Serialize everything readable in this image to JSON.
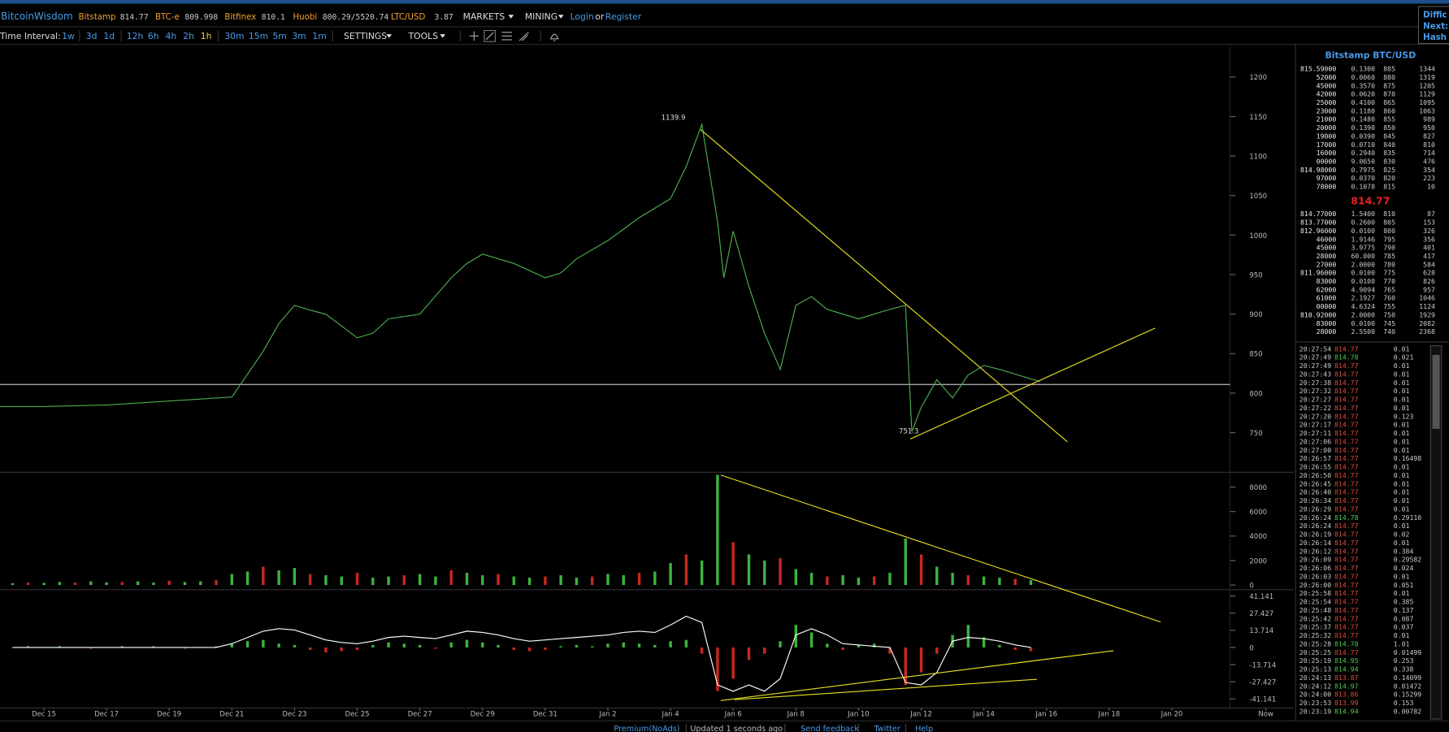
{
  "header": {
    "brand": "BitcoinWisdom",
    "tickers": [
      {
        "name": "Bitstamp",
        "price": "814.77"
      },
      {
        "name": "BTC-e",
        "price": "809.998"
      },
      {
        "name": "Bitfinex",
        "price": "810.1"
      },
      {
        "name": "Huobi",
        "price": "800.29/5520.74"
      },
      {
        "name": "LTC/USD",
        "price": "3.87"
      }
    ],
    "menus": [
      "MARKETS",
      "MINING"
    ],
    "login": "Login",
    "or": "or",
    "register": "Register"
  },
  "side_info": [
    "Diffic",
    "Next:",
    "Hash I"
  ],
  "toolbar": {
    "label": "Time Interval:",
    "intervals": [
      "1w",
      "3d",
      "1d",
      "12h",
      "6h",
      "4h",
      "2h",
      "1h",
      "30m",
      "15m",
      "5m",
      "3m",
      "1m"
    ],
    "settings": "SETTINGS",
    "tools": "TOOLS"
  },
  "chart_data": [
    {
      "type": "line",
      "xlim": [
        -1.4,
        39.3
      ],
      "ylim": [
        701,
        1239
      ],
      "yticks": [
        750,
        800,
        850,
        900,
        950,
        1000,
        1050,
        1100,
        1150,
        1200
      ],
      "x": [
        -1.4,
        0,
        2,
        4,
        6,
        7,
        7.5,
        8,
        8.5,
        9,
        10,
        10.5,
        11,
        12,
        13,
        13.5,
        14,
        15,
        16,
        16.5,
        17,
        18,
        19,
        20,
        20.5,
        21,
        21.5,
        21.7,
        22,
        22.5,
        23,
        23.5,
        24,
        24.5,
        25,
        26,
        27,
        27.5,
        27.7,
        28,
        28.5,
        29,
        29.5,
        30,
        30.5,
        31,
        31.5,
        31.8
      ],
      "series": [
        {
          "color": "#4caf50",
          "values": [
            783,
            783,
            785,
            790,
            795,
            853,
            888,
            911,
            905,
            900,
            870,
            876,
            894,
            900,
            946,
            964,
            976,
            964,
            946,
            952,
            970,
            993,
            1022,
            1046,
            1087,
            1139.9,
            1017,
            946,
            1005,
            935,
            876,
            830,
            911,
            922,
            906,
            894,
            906,
            911,
            751.3,
            782,
            817,
            794,
            823,
            835,
            830,
            824,
            818,
            814.77
          ]
        }
      ],
      "annotations": [
        {
          "x": 21,
          "value": 1139.9
        },
        {
          "x": 27.7,
          "value": 751.3
        }
      ]
    },
    {
      "type": "bar",
      "xlim": [
        -1.4,
        39.3
      ],
      "ylim": [
        -377,
        9132
      ],
      "yticks": [
        0,
        2000,
        4000,
        6000,
        8000
      ],
      "up_color": "#3cb43c",
      "down_color": "#c8281e",
      "x": [
        -1,
        -0.5,
        0,
        0.5,
        1,
        1.5,
        2,
        2.5,
        3,
        3.5,
        4,
        4.5,
        5,
        5.5,
        6,
        6.5,
        7,
        7.5,
        8,
        8.5,
        9,
        9.5,
        10,
        10.5,
        11,
        11.5,
        12,
        12.5,
        13,
        13.5,
        14,
        14.5,
        15,
        15.5,
        16,
        16.5,
        17,
        17.5,
        18,
        18.5,
        19,
        19.5,
        20,
        20.5,
        21,
        21.5,
        22,
        22.5,
        23,
        23.5,
        24,
        24.5,
        25,
        25.5,
        26,
        26.5,
        27,
        27.5,
        28,
        28.5,
        29,
        29.5,
        30,
        30.5,
        31,
        31.5
      ],
      "values": [
        150,
        200,
        180,
        250,
        200,
        300,
        220,
        250,
        300,
        200,
        350,
        250,
        300,
        400,
        900,
        1100,
        1500,
        1200,
        1400,
        900,
        800,
        700,
        1000,
        600,
        700,
        800,
        900,
        700,
        1200,
        1000,
        800,
        900,
        700,
        600,
        700,
        800,
        600,
        700,
        900,
        800,
        1000,
        1100,
        1800,
        2500,
        2000,
        9000,
        3500,
        2500,
        2000,
        2200,
        1300,
        1000,
        700,
        800,
        600,
        700,
        1000,
        3800,
        2500,
        1500,
        1000,
        800,
        700,
        600,
        500,
        400
      ]
    },
    {
      "type": "macd",
      "xlim": [
        -1.4,
        39.3
      ],
      "ylim": [
        -48.4,
        46.2
      ],
      "yticks": [
        -41.141,
        -27.427,
        -13.714,
        0,
        13.714,
        27.427,
        41.141
      ],
      "xticks": [
        {
          "value": 0,
          "label": "Dec 15"
        },
        {
          "value": 2,
          "label": "Dec 17"
        },
        {
          "value": 4,
          "label": "Dec 19"
        },
        {
          "value": 6,
          "label": "Dec 21"
        },
        {
          "value": 8,
          "label": "Dec 23"
        },
        {
          "value": 10,
          "label": "Dec 25"
        },
        {
          "value": 12,
          "label": "Dec 27"
        },
        {
          "value": 14,
          "label": "Dec 29"
        },
        {
          "value": 16,
          "label": "Dec 31"
        },
        {
          "value": 18,
          "label": "Jan 2"
        },
        {
          "value": 20,
          "label": "Jan 4"
        },
        {
          "value": 22,
          "label": "Jan 6"
        },
        {
          "value": 24,
          "label": "Jan 8"
        },
        {
          "value": 26,
          "label": "Jan 10"
        },
        {
          "value": 28,
          "label": "Jan 12"
        },
        {
          "value": 30,
          "label": "Jan 14"
        },
        {
          "value": 32,
          "label": "Jan 16"
        },
        {
          "value": 34,
          "label": "Jan 18"
        },
        {
          "value": 36,
          "label": "Jan 20"
        },
        {
          "value": 39,
          "label": "Now"
        }
      ],
      "x": [
        -1,
        -0.5,
        0,
        0.5,
        1,
        1.5,
        2,
        2.5,
        3,
        3.5,
        4,
        4.5,
        5,
        5.5,
        6,
        6.5,
        7,
        7.5,
        8,
        8.5,
        9,
        9.5,
        10,
        10.5,
        11,
        11.5,
        12,
        12.5,
        13,
        13.5,
        14,
        14.5,
        15,
        15.5,
        16,
        16.5,
        17,
        17.5,
        18,
        18.5,
        19,
        19.5,
        20,
        20.5,
        21,
        21.5,
        22,
        22.5,
        23,
        23.5,
        24,
        24.5,
        25,
        25.5,
        26,
        26.5,
        27,
        27.5,
        28,
        28.5,
        29,
        29.5,
        30,
        30.5,
        31,
        31.5
      ],
      "histogram": {
        "up_color": "#3cb43c",
        "down_color": "#c8281e",
        "values": [
          0,
          1,
          0,
          1,
          0,
          -1,
          0,
          1,
          0,
          1,
          0,
          -1,
          0,
          1,
          3,
          5,
          6,
          3,
          2,
          -2,
          -4,
          -3,
          -2,
          2,
          4,
          3,
          2,
          -1,
          4,
          6,
          4,
          2,
          -2,
          -3,
          -2,
          1,
          2,
          1,
          3,
          4,
          3,
          2,
          5,
          6,
          -5,
          -35,
          -25,
          -10,
          -5,
          5,
          18,
          12,
          3,
          -2,
          2,
          3,
          -5,
          -30,
          -20,
          -5,
          10,
          18,
          8,
          2,
          -2,
          -3
        ]
      },
      "series": [
        {
          "color": "#ffffff",
          "values": [
            0,
            0,
            0,
            0,
            0,
            0,
            0,
            0,
            0,
            0,
            0,
            0,
            0,
            0,
            3,
            8,
            13,
            15,
            14,
            10,
            6,
            4,
            3,
            5,
            8,
            9,
            8,
            7,
            10,
            13,
            12,
            10,
            7,
            5,
            6,
            7,
            8,
            9,
            10,
            12,
            13,
            12,
            18,
            25,
            20,
            -30,
            -35,
            -30,
            -35,
            -25,
            10,
            15,
            10,
            3,
            2,
            1,
            0,
            -28,
            -30,
            -20,
            5,
            8,
            7,
            5,
            2,
            0
          ]
        }
      ]
    }
  ],
  "order_book": {
    "title": "Bitstamp BTC/USD",
    "asks": [
      [
        "815.59000",
        "0.1300",
        "885",
        "1344"
      ],
      [
        "52000",
        "0.0060",
        "880",
        "1319"
      ],
      [
        "45000",
        "0.3570",
        "875",
        "1205"
      ],
      [
        "42000",
        "0.0620",
        "870",
        "1129"
      ],
      [
        "25000",
        "0.4100",
        "865",
        "1095"
      ],
      [
        "23000",
        "0.1180",
        "860",
        "1063"
      ],
      [
        "21000",
        "0.1480",
        "855",
        "989"
      ],
      [
        "20000",
        "0.1390",
        "850",
        "950"
      ],
      [
        "19000",
        "0.0390",
        "845",
        "827"
      ],
      [
        "17000",
        "0.0710",
        "840",
        "810"
      ],
      [
        "16000",
        "0.2940",
        "835",
        "714"
      ],
      [
        "00000",
        "9.0650",
        "830",
        "476"
      ],
      [
        "814.98000",
        "0.7975",
        "825",
        "354"
      ],
      [
        "97000",
        "0.0370",
        "820",
        "223"
      ],
      [
        "78000",
        "0.1078",
        "815",
        "10"
      ]
    ],
    "last": "814.77",
    "bids": [
      [
        "814.77000",
        "1.5400",
        "810",
        "87"
      ],
      [
        "813.77000",
        "0.2600",
        "805",
        "153"
      ],
      [
        "812.96000",
        "0.0100",
        "800",
        "326"
      ],
      [
        "46000",
        "1.9146",
        "795",
        "356"
      ],
      [
        "45000",
        "3.9775",
        "790",
        "401"
      ],
      [
        "28000",
        "60.000",
        "785",
        "417"
      ],
      [
        "27000",
        "2.0000",
        "780",
        "584"
      ],
      [
        "811.96000",
        "0.0100",
        "775",
        "628"
      ],
      [
        "83000",
        "0.0100",
        "770",
        "826"
      ],
      [
        "62000",
        "4.9094",
        "765",
        "957"
      ],
      [
        "61000",
        "2.1927",
        "760",
        "1046"
      ],
      [
        "00000",
        "4.6324",
        "755",
        "1124"
      ],
      [
        "810.92000",
        "2.0000",
        "750",
        "1929"
      ],
      [
        "83000",
        "0.0100",
        "745",
        "2082"
      ],
      [
        "28000",
        "2.5500",
        "740",
        "2368"
      ]
    ]
  },
  "trades": [
    {
      "time": "20:27:54",
      "price": "814.77",
      "amount": "0.01",
      "color": "#e24c3c"
    },
    {
      "time": "20:27:49",
      "price": "814.78",
      "amount": "0.021",
      "color": "#4cd04c"
    },
    {
      "time": "20:27:49",
      "price": "814.77",
      "amount": "0.01",
      "color": "#e24c3c"
    },
    {
      "time": "20:27:43",
      "price": "814.77",
      "amount": "0.01",
      "color": "#e24c3c"
    },
    {
      "time": "20:27:38",
      "price": "814.77",
      "amount": "0.01",
      "color": "#e24c3c"
    },
    {
      "time": "20:27:32",
      "price": "814.77",
      "amount": "0.01",
      "color": "#e24c3c"
    },
    {
      "time": "20:27:27",
      "price": "814.77",
      "amount": "0.01",
      "color": "#e24c3c"
    },
    {
      "time": "20:27:22",
      "price": "814.77",
      "amount": "0.01",
      "color": "#e24c3c"
    },
    {
      "time": "20:27:20",
      "price": "814.77",
      "amount": "0.123",
      "color": "#e24c3c"
    },
    {
      "time": "20:27:17",
      "price": "814.77",
      "amount": "0.01",
      "color": "#e24c3c"
    },
    {
      "time": "20:27:11",
      "price": "814.77",
      "amount": "0.01",
      "color": "#e24c3c"
    },
    {
      "time": "20:27:06",
      "price": "814.77",
      "amount": "0.01",
      "color": "#e24c3c"
    },
    {
      "time": "20:27:00",
      "price": "814.77",
      "amount": "0.01",
      "color": "#e24c3c"
    },
    {
      "time": "20:26:57",
      "price": "814.77",
      "amount": "0.16498",
      "color": "#e24c3c"
    },
    {
      "time": "20:26:55",
      "price": "814.77",
      "amount": "0.01",
      "color": "#e24c3c"
    },
    {
      "time": "20:26:50",
      "price": "814.77",
      "amount": "0.01",
      "color": "#e24c3c"
    },
    {
      "time": "20:26:45",
      "price": "814.77",
      "amount": "0.01",
      "color": "#e24c3c"
    },
    {
      "time": "20:26:40",
      "price": "814.77",
      "amount": "0.01",
      "color": "#e24c3c"
    },
    {
      "time": "20:26:34",
      "price": "814.77",
      "amount": "0.01",
      "color": "#e24c3c"
    },
    {
      "time": "20:26:29",
      "price": "814.77",
      "amount": "0.01",
      "color": "#e24c3c"
    },
    {
      "time": "20:26:24",
      "price": "814.78",
      "amount": "0.29110",
      "color": "#4cd04c"
    },
    {
      "time": "20:26:24",
      "price": "814.77",
      "amount": "0.01",
      "color": "#e24c3c"
    },
    {
      "time": "20:26:19",
      "price": "814.77",
      "amount": "0.02",
      "color": "#e24c3c"
    },
    {
      "time": "20:26:14",
      "price": "814.77",
      "amount": "0.01",
      "color": "#e24c3c"
    },
    {
      "time": "20:26:12",
      "price": "814.77",
      "amount": "0.384",
      "color": "#e24c3c"
    },
    {
      "time": "20:26:09",
      "price": "814.77",
      "amount": "0.29582",
      "color": "#e24c3c"
    },
    {
      "time": "20:26:06",
      "price": "814.77",
      "amount": "0.024",
      "color": "#e24c3c"
    },
    {
      "time": "20:26:03",
      "price": "814.77",
      "amount": "0.01",
      "color": "#e24c3c"
    },
    {
      "time": "20:26:00",
      "price": "814.77",
      "amount": "0.051",
      "color": "#e24c3c"
    },
    {
      "time": "20:25:58",
      "price": "814.77",
      "amount": "0.01",
      "color": "#e24c3c"
    },
    {
      "time": "20:25:54",
      "price": "814.77",
      "amount": "0.385",
      "color": "#e24c3c"
    },
    {
      "time": "20:25:48",
      "price": "814.77",
      "amount": "0.137",
      "color": "#e24c3c"
    },
    {
      "time": "20:25:42",
      "price": "814.77",
      "amount": "0.087",
      "color": "#e24c3c"
    },
    {
      "time": "20:25:37",
      "price": "814.77",
      "amount": "0.037",
      "color": "#e24c3c"
    },
    {
      "time": "20:25:32",
      "price": "814.77",
      "amount": "0.01",
      "color": "#e24c3c"
    },
    {
      "time": "20:25:28",
      "price": "814.78",
      "amount": "1.01",
      "color": "#4cd04c"
    },
    {
      "time": "20:25:25",
      "price": "814.77",
      "amount": "0.01499",
      "color": "#e24c3c"
    },
    {
      "time": "20:25:19",
      "price": "814.95",
      "amount": "0.253",
      "color": "#4cd04c"
    },
    {
      "time": "20:25:13",
      "price": "814.94",
      "amount": "0.338",
      "color": "#4cd04c"
    },
    {
      "time": "20:24:13",
      "price": "813.87",
      "amount": "0.14099",
      "color": "#e24c3c"
    },
    {
      "time": "20:24:12",
      "price": "814.97",
      "amount": "0.01472",
      "color": "#4cd04c"
    },
    {
      "time": "20:24:00",
      "price": "813.86",
      "amount": "0.15299",
      "color": "#e24c3c"
    },
    {
      "time": "20:23:53",
      "price": "813.99",
      "amount": "0.153",
      "color": "#e24c3c"
    },
    {
      "time": "20:23:19",
      "price": "814.94",
      "amount": "0.00782",
      "color": "#4cd04c"
    }
  ],
  "footer": [
    "Premium(NoAds)",
    "Updated 1 seconds ago",
    "Send feedback",
    "Twitter",
    "Help"
  ]
}
